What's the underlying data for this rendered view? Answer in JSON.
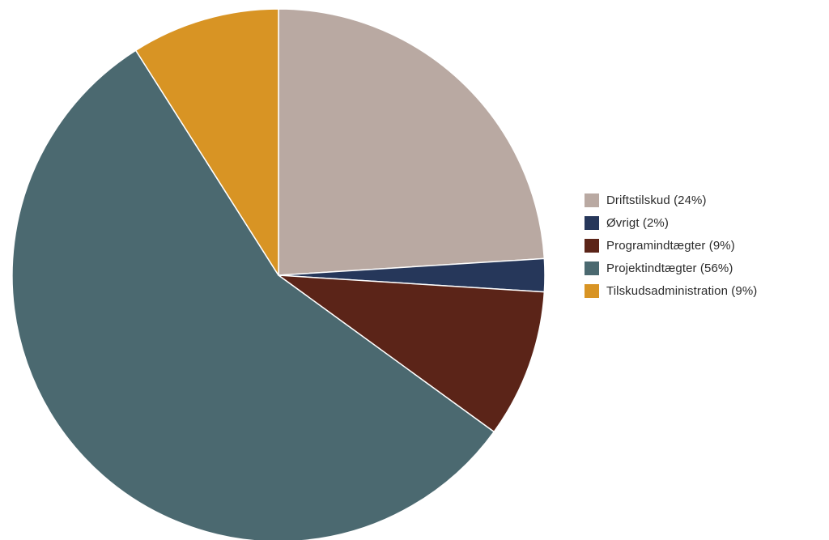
{
  "chart_data": {
    "type": "pie",
    "title": "",
    "start_angle_deg": 0,
    "direction": "clockwise",
    "slices": [
      {
        "label": "Driftstilskud (24%)",
        "value": 24,
        "color": "#b9a9a2"
      },
      {
        "label": "Øvrigt (2%)",
        "value": 2,
        "color": "#26375a"
      },
      {
        "label": "Programindtægter (9%)",
        "value": 9,
        "color": "#5b2418"
      },
      {
        "label": "Projektindtægter (56%)",
        "value": 56,
        "color": "#4b6970"
      },
      {
        "label": "Tilskudsadministration (9%)",
        "value": 9,
        "color": "#d89424"
      }
    ],
    "legend": {
      "position": "right"
    }
  }
}
